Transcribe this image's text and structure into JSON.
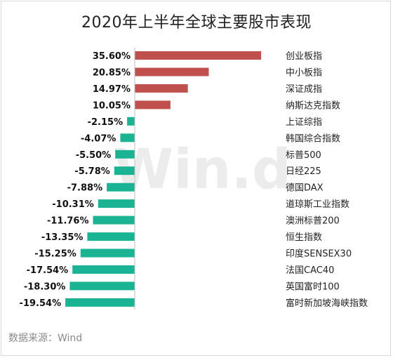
{
  "title": "2020年上半年全球主要股市表现",
  "source": "数据来源：Wind",
  "watermark": "Win.d",
  "colors": {
    "positive": "#c0504d",
    "negative": "#1ab394",
    "axis": "#bfbfbf",
    "watermark": "#ececec"
  },
  "chart_data": {
    "type": "bar",
    "orientation": "horizontal",
    "title": "2020年上半年全球主要股市表现",
    "xlabel": "",
    "ylabel": "",
    "unit": "%",
    "categories": [
      "创业板指",
      "中小板指",
      "深证成指",
      "纳斯达克指数",
      "上证综指",
      "韩国综合指数",
      "标普500",
      "日经225",
      "德国DAX",
      "道琼斯工业指数",
      "澳洲标普200",
      "恒生指数",
      "印度SENSEX30",
      "法国CAC40",
      "英国富时100",
      "富时新加坡海峡指数"
    ],
    "values": [
      35.6,
      20.85,
      14.97,
      10.05,
      -2.15,
      -4.07,
      -5.5,
      -5.78,
      -7.88,
      -10.31,
      -11.76,
      -13.35,
      -15.25,
      -17.54,
      -18.3,
      -19.54
    ],
    "value_labels": [
      "35.60%",
      "20.85%",
      "14.97%",
      "10.05%",
      "-2.15%",
      "-4.07%",
      "-5.50%",
      "-5.78%",
      "-7.88%",
      "-10.31%",
      "-11.76%",
      "-13.35%",
      "-15.25%",
      "-17.54%",
      "-18.30%",
      "-19.54%"
    ],
    "grid": false,
    "legend": "none"
  }
}
